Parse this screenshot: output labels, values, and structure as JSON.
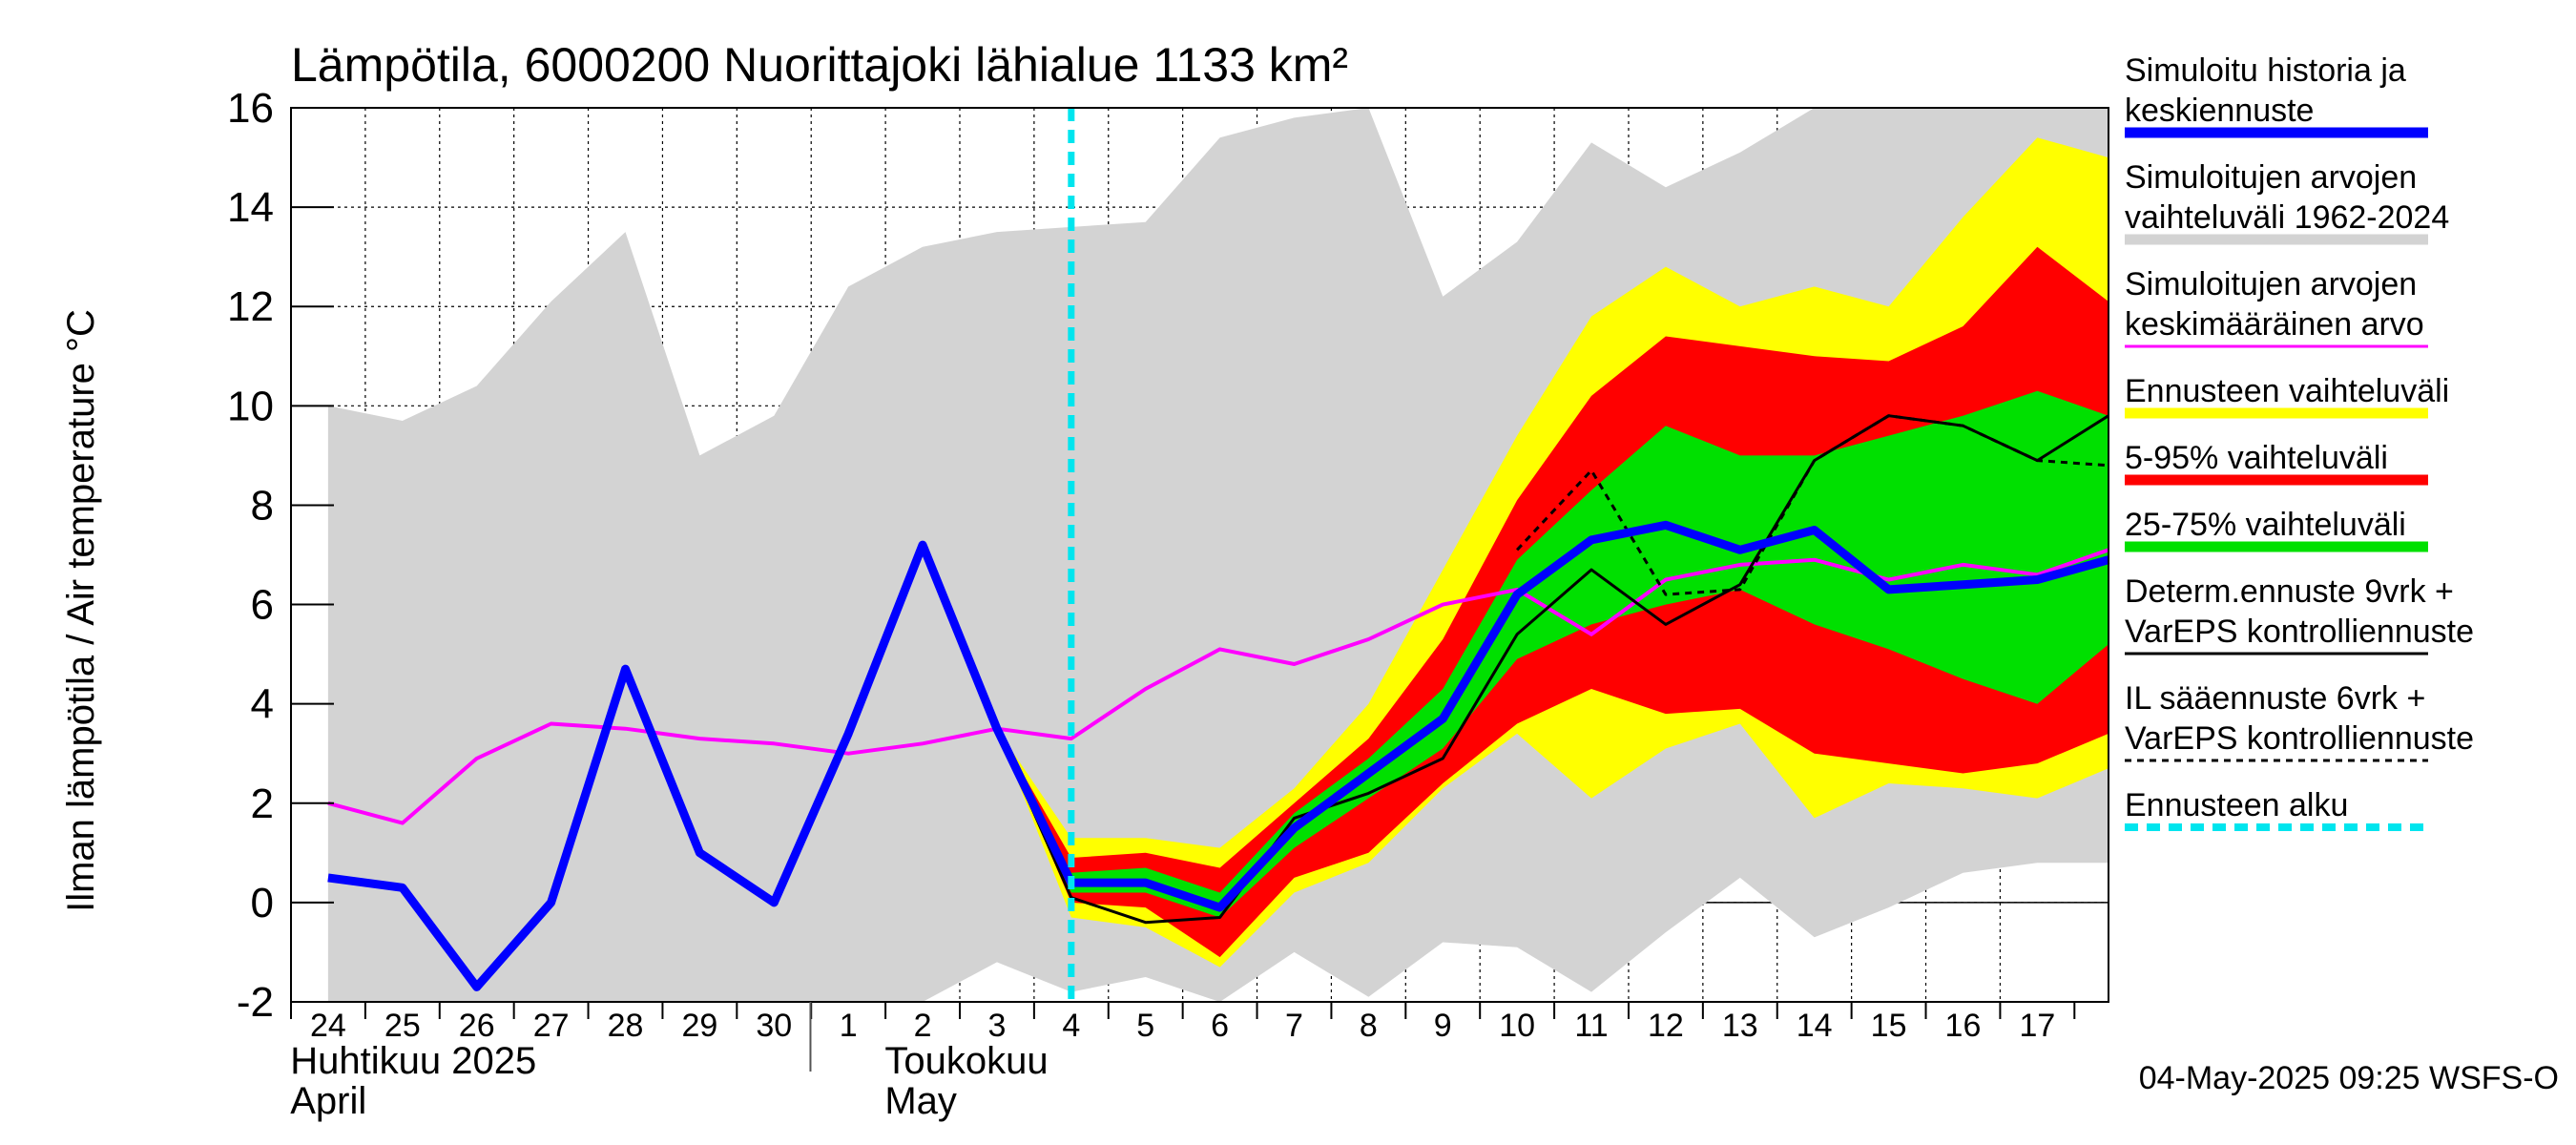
{
  "chart_data": {
    "type": "area",
    "title": "Lämpötila, 6000200 Nuorittajoki lähialue 1133 km²",
    "ylabel": "Ilman lämpötila / Air temperature    °C",
    "ylim": [
      -2,
      16
    ],
    "yticks": [
      -2,
      0,
      2,
      4,
      6,
      8,
      10,
      12,
      14,
      16
    ],
    "grid": true,
    "legend_position": "right",
    "timestamp": "04-May-2025 09:25 WSFS-O",
    "x_start": "2025-04-24",
    "x_end": "2025-05-17T23:00",
    "day_labels": [
      "24",
      "25",
      "26",
      "27",
      "28",
      "29",
      "30",
      "1",
      "2",
      "3",
      "4",
      "5",
      "6",
      "7",
      "8",
      "9",
      "10",
      "11",
      "12",
      "13",
      "14",
      "15",
      "16",
      "17"
    ],
    "month_labels": [
      {
        "fi": "Huhtikuu  2025",
        "en": "April",
        "date": "2025-04-24"
      },
      {
        "fi": "Toukokuu",
        "en": "May",
        "date": "2025-05-02"
      }
    ],
    "month_separator": "2025-05-01",
    "forecast_start": "2025-05-04",
    "series": {
      "historical_range": {
        "color": "#d3d3d3",
        "x": [
          "2025-04-24",
          "2025-04-25",
          "2025-04-26",
          "2025-04-27",
          "2025-04-28",
          "2025-04-29",
          "2025-04-30",
          "2025-05-01",
          "2025-05-02",
          "2025-05-03",
          "2025-05-04",
          "2025-05-05",
          "2025-05-06",
          "2025-05-07",
          "2025-05-08",
          "2025-05-09",
          "2025-05-10",
          "2025-05-11",
          "2025-05-12",
          "2025-05-13",
          "2025-05-14",
          "2025-05-15",
          "2025-05-16",
          "2025-05-17",
          "2025-05-17T23:00"
        ],
        "upper": [
          10.0,
          9.7,
          10.4,
          12.1,
          13.5,
          9.0,
          9.8,
          12.4,
          13.2,
          13.5,
          13.6,
          13.7,
          15.4,
          15.8,
          16.0,
          12.2,
          13.3,
          15.3,
          14.4,
          15.1,
          16.0,
          16.0,
          16.0,
          16.0,
          16.0
        ],
        "lower": [
          -2.0,
          -2.0,
          -2.0,
          -2.0,
          -2.0,
          -2.0,
          -2.0,
          -2.0,
          -2.0,
          -1.2,
          -1.8,
          -1.5,
          -2.0,
          -1.0,
          -1.9,
          -0.8,
          -0.9,
          -1.8,
          -0.6,
          0.5,
          -0.7,
          -0.1,
          0.6,
          0.8,
          0.8
        ]
      },
      "forecast_range": {
        "color": "#ffff00",
        "x": [
          "2025-05-03",
          "2025-05-04",
          "2025-05-05",
          "2025-05-06",
          "2025-05-07",
          "2025-05-08",
          "2025-05-09",
          "2025-05-10",
          "2025-05-11",
          "2025-05-12",
          "2025-05-13",
          "2025-05-14",
          "2025-05-15",
          "2025-05-16",
          "2025-05-17",
          "2025-05-17T23:00"
        ],
        "upper": [
          3.5,
          1.3,
          1.3,
          1.1,
          2.3,
          4.0,
          6.7,
          9.4,
          11.8,
          12.8,
          12.0,
          12.4,
          12.0,
          13.8,
          15.4,
          15.0
        ],
        "lower": [
          3.5,
          -0.3,
          -0.5,
          -1.3,
          0.2,
          0.8,
          2.3,
          3.4,
          2.1,
          3.1,
          3.6,
          1.7,
          2.4,
          2.3,
          2.1,
          2.7
        ]
      },
      "p5_95_range": {
        "color": "#ff0000",
        "x": [
          "2025-05-03",
          "2025-05-04",
          "2025-05-05",
          "2025-05-06",
          "2025-05-07",
          "2025-05-08",
          "2025-05-09",
          "2025-05-10",
          "2025-05-11",
          "2025-05-12",
          "2025-05-13",
          "2025-05-14",
          "2025-05-15",
          "2025-05-16",
          "2025-05-17",
          "2025-05-17T23:00"
        ],
        "upper": [
          3.5,
          0.9,
          1.0,
          0.7,
          2.0,
          3.3,
          5.3,
          8.1,
          10.2,
          11.4,
          11.2,
          11.0,
          10.9,
          11.6,
          13.2,
          12.1
        ],
        "lower": [
          3.5,
          0.0,
          -0.1,
          -1.1,
          0.5,
          1.0,
          2.4,
          3.6,
          4.3,
          3.8,
          3.9,
          3.0,
          2.8,
          2.6,
          2.8,
          3.4
        ]
      },
      "p25_75_range": {
        "color": "#00e000",
        "x": [
          "2025-05-03",
          "2025-05-04",
          "2025-05-05",
          "2025-05-06",
          "2025-05-07",
          "2025-05-08",
          "2025-05-09",
          "2025-05-10",
          "2025-05-11",
          "2025-05-12",
          "2025-05-13",
          "2025-05-14",
          "2025-05-15",
          "2025-05-16",
          "2025-05-17",
          "2025-05-17T23:00"
        ],
        "upper": [
          3.5,
          0.6,
          0.7,
          0.2,
          1.8,
          2.9,
          4.3,
          6.9,
          8.3,
          9.6,
          9.0,
          9.0,
          9.4,
          9.8,
          10.3,
          9.8
        ],
        "lower": [
          3.5,
          0.2,
          0.2,
          -0.3,
          1.1,
          2.1,
          3.1,
          4.9,
          5.6,
          6.0,
          6.3,
          5.6,
          5.1,
          4.5,
          4.0,
          5.2
        ]
      },
      "sim_mean": {
        "name": "Simuloitujen arvojen keskimääräinen arvo",
        "color": "#ff00ff",
        "x": [
          "2025-04-24",
          "2025-04-25",
          "2025-04-26",
          "2025-04-27",
          "2025-04-28",
          "2025-04-29",
          "2025-04-30",
          "2025-05-01",
          "2025-05-02",
          "2025-05-03",
          "2025-05-04",
          "2025-05-05",
          "2025-05-06",
          "2025-05-07",
          "2025-05-08",
          "2025-05-09",
          "2025-05-10",
          "2025-05-11",
          "2025-05-12",
          "2025-05-13",
          "2025-05-14",
          "2025-05-15",
          "2025-05-16",
          "2025-05-17",
          "2025-05-17T23:00"
        ],
        "y": [
          2.0,
          1.6,
          2.9,
          3.6,
          3.5,
          3.3,
          3.2,
          3.0,
          3.2,
          3.5,
          3.3,
          4.3,
          5.1,
          4.8,
          5.3,
          6.0,
          6.3,
          5.4,
          6.5,
          6.8,
          6.9,
          6.5,
          6.8,
          6.6,
          7.1
        ]
      },
      "il_forecast": {
        "name": "IL sääennuste 6vrk + VarEPS kontrolliennuste",
        "color": "#000000",
        "dashed": true,
        "x": [
          "2025-05-10",
          "2025-05-11",
          "2025-05-12",
          "2025-05-13",
          "2025-05-14",
          "2025-05-15",
          "2025-05-16",
          "2025-05-17",
          "2025-05-17T23:00"
        ],
        "y": [
          7.1,
          8.7,
          6.2,
          6.3,
          8.9,
          9.8,
          9.6,
          8.9,
          8.8
        ]
      },
      "determ_forecast": {
        "name": "Determ.ennuste 9vrk + VarEPS kontrolliennuste",
        "color": "#000000",
        "x": [
          "2025-05-02",
          "2025-05-03",
          "2025-05-04",
          "2025-05-05",
          "2025-05-06",
          "2025-05-07",
          "2025-05-08",
          "2025-05-09",
          "2025-05-10",
          "2025-05-11",
          "2025-05-12",
          "2025-05-13",
          "2025-05-14",
          "2025-05-15",
          "2025-05-16",
          "2025-05-17",
          "2025-05-17T23:00"
        ],
        "y": [
          7.1,
          3.5,
          0.1,
          -0.4,
          -0.3,
          1.7,
          2.2,
          2.9,
          5.4,
          6.7,
          5.6,
          6.4,
          8.9,
          9.8,
          9.6,
          8.9,
          9.8
        ]
      },
      "sim_history": {
        "name": "Simuloitu historia ja keskiennuste",
        "color": "#0000ff",
        "x": [
          "2025-04-24",
          "2025-04-25",
          "2025-04-26",
          "2025-04-27",
          "2025-04-28",
          "2025-04-29",
          "2025-04-30",
          "2025-05-01",
          "2025-05-02",
          "2025-05-03",
          "2025-05-04",
          "2025-05-05",
          "2025-05-06",
          "2025-05-07",
          "2025-05-08",
          "2025-05-09",
          "2025-05-10",
          "2025-05-11",
          "2025-05-12",
          "2025-05-13",
          "2025-05-14",
          "2025-05-15",
          "2025-05-16",
          "2025-05-17",
          "2025-05-17T23:00"
        ],
        "y": [
          0.5,
          0.3,
          -1.7,
          0.0,
          4.7,
          1.0,
          0.0,
          3.4,
          7.2,
          3.5,
          0.4,
          0.4,
          -0.1,
          1.5,
          2.6,
          3.7,
          6.2,
          7.3,
          7.6,
          7.1,
          7.5,
          6.3,
          6.4,
          6.5,
          6.9
        ]
      }
    },
    "legend": [
      {
        "label": [
          "Simuloitu historia ja",
          "keskiennuste"
        ],
        "color": "#0000ff",
        "style": "thick"
      },
      {
        "label": [
          "Simuloitujen arvojen",
          "vaihteluväli 1962-2024"
        ],
        "color": "#d3d3d3",
        "style": "thick"
      },
      {
        "label": [
          "Simuloitujen arvojen",
          "keskimääräinen arvo"
        ],
        "color": "#ff00ff",
        "style": "thin"
      },
      {
        "label": [
          "Ennusteen vaihteluväli"
        ],
        "color": "#ffff00",
        "style": "thick"
      },
      {
        "label": [
          "5-95% vaihteluväli"
        ],
        "color": "#ff0000",
        "style": "thick"
      },
      {
        "label": [
          "25-75% vaihteluväli"
        ],
        "color": "#00e000",
        "style": "thick"
      },
      {
        "label": [
          "Determ.ennuste 9vrk +",
          "VarEPS kontrolliennuste"
        ],
        "color": "#000000",
        "style": "thin"
      },
      {
        "label": [
          "IL sääennuste 6vrk  +",
          "  VarEPS kontrolliennuste"
        ],
        "color": "#000000",
        "style": "dashed"
      },
      {
        "label": [
          "Ennusteen alku"
        ],
        "color": "#00e5ee",
        "style": "dotted"
      }
    ]
  }
}
